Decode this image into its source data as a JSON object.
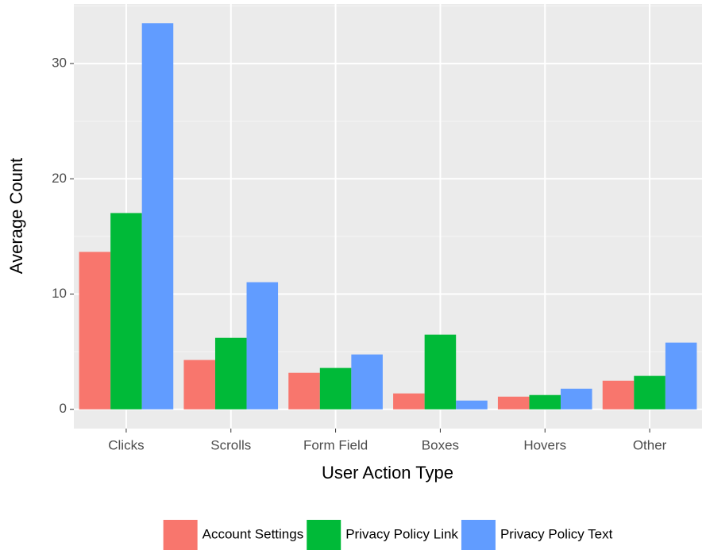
{
  "chart_data": {
    "type": "bar",
    "x_label": "User Action Type",
    "y_label": "Average Count",
    "categories": [
      "Clicks",
      "Scrolls",
      "Form Field",
      "Boxes",
      "Hovers",
      "Other"
    ],
    "series": [
      {
        "name": "Account Settings",
        "color": "#f8766d",
        "values": [
          13.66,
          4.28,
          3.17,
          1.38,
          1.1,
          2.48
        ]
      },
      {
        "name": "Privacy Policy Link",
        "color": "#00ba38",
        "values": [
          17.03,
          6.2,
          3.59,
          6.48,
          1.24,
          2.9
        ]
      },
      {
        "name": "Privacy Policy Text",
        "color": "#619cff",
        "values": [
          33.5,
          11.03,
          4.76,
          0.76,
          1.79,
          5.79
        ]
      }
    ],
    "ylim": [
      -1.67,
      35.17
    ],
    "yticks": [
      0,
      10,
      20,
      30
    ],
    "y_minor_ticks": [
      5,
      15,
      25,
      35
    ],
    "grid": true,
    "legend": "bottom"
  }
}
